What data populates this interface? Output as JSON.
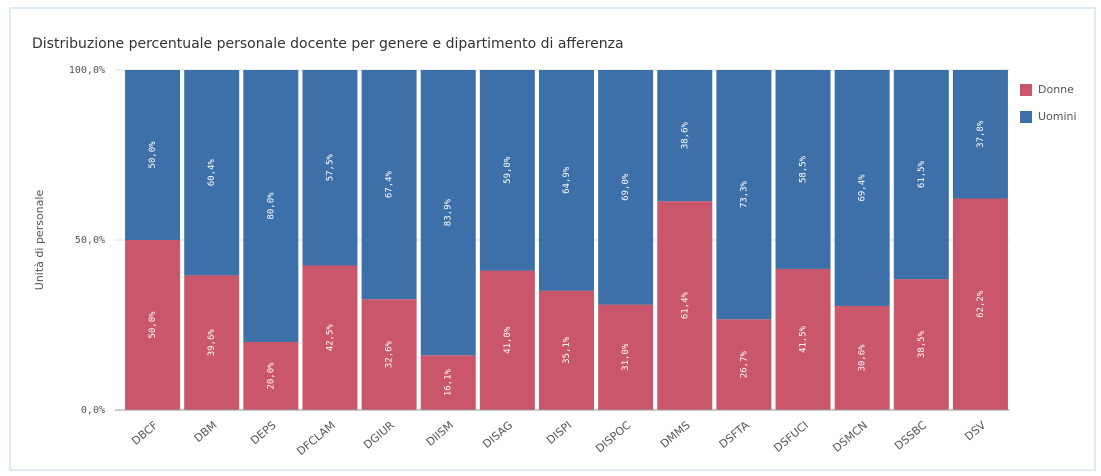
{
  "chart_data": {
    "type": "stacked_bar",
    "title": "Distribuzione percentuale personale docente per genere e dipartimento di afferenza",
    "y_label": "Unità di personale",
    "categories": [
      "DBCF",
      "DBM",
      "DEPS",
      "DFCLAM",
      "DGIUR",
      "DIISM",
      "DISAG",
      "DISPI",
      "DISPOC",
      "DMMS",
      "DSFTA",
      "DSFUCI",
      "DSMCN",
      "DSSBC",
      "DSV"
    ],
    "series": [
      {
        "name": "Donne",
        "color": "#c9566b",
        "values": [
          50.0,
          39.6,
          20.0,
          42.5,
          32.6,
          16.1,
          41.0,
          35.1,
          31.0,
          61.4,
          26.7,
          41.5,
          30.6,
          38.5,
          62.2
        ],
        "value_labels": [
          "50,0%",
          "39,6%",
          "20,0%",
          "42,5%",
          "32,6%",
          "16,1%",
          "41,0%",
          "35,1%",
          "31,0%",
          "61,4%",
          "26,7%",
          "41,5%",
          "30,6%",
          "38,5%",
          "62,2%"
        ]
      },
      {
        "name": "Uomini",
        "color": "#3d6fa8",
        "values": [
          50.0,
          60.4,
          80.0,
          57.5,
          67.4,
          83.9,
          59.0,
          64.9,
          69.0,
          38.6,
          73.3,
          58.5,
          69.4,
          61.5,
          37.8
        ],
        "value_labels": [
          "50,0%",
          "60,4%",
          "80,0%",
          "57,5%",
          "67,4%",
          "83,9%",
          "59,0%",
          "64,9%",
          "69,0%",
          "38,6%",
          "73,3%",
          "58,5%",
          "69,4%",
          "61,5%",
          "37,8%"
        ]
      }
    ],
    "ylim": [
      0,
      100
    ],
    "yticks": [
      {
        "value": 0,
        "label": "0,0%"
      },
      {
        "value": 50,
        "label": "50,0%"
      },
      {
        "value": 100,
        "label": "100,0%"
      }
    ],
    "grid": true,
    "legend": "top-right"
  }
}
